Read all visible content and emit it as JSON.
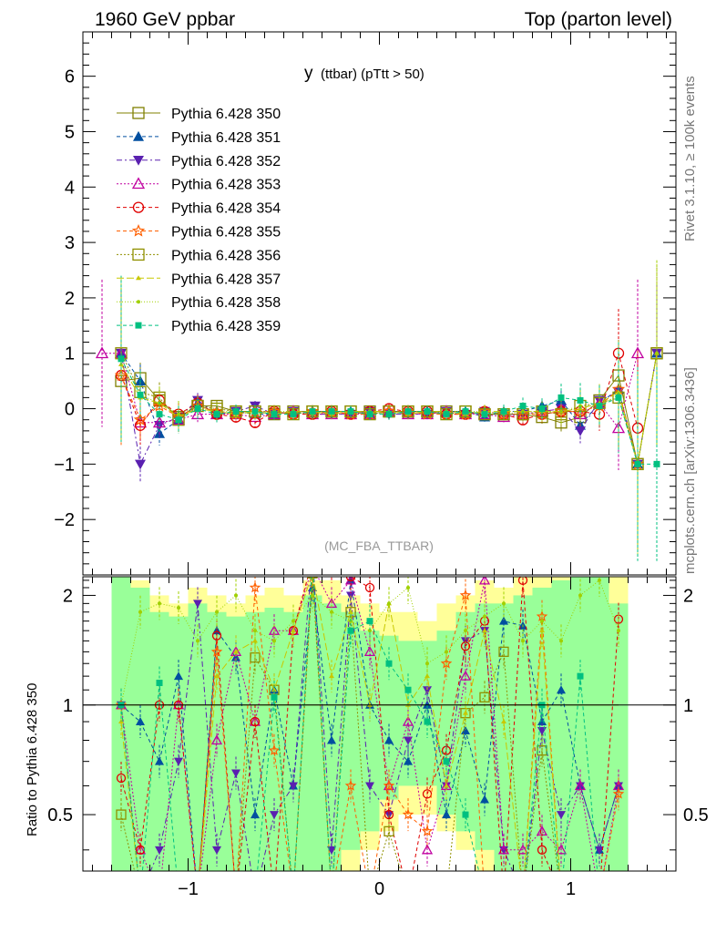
{
  "header": {
    "left": "1960 GeV ppbar",
    "right": "Top (parton level)"
  },
  "side": {
    "rivet": "Rivet 3.1.10, ≥ 100k events",
    "mcplots": "mcplots.cern.ch [arXiv:1306.3436]"
  },
  "plot_title": {
    "main": "y",
    "sub": "(ttbar)  (pTtt > 50)"
  },
  "analysis": "(MC_FBA_TTBAR)",
  "ratio_ylabel": "Ratio to Pythia 6.428 350",
  "legend": [
    "Pythia 6.428 350",
    "Pythia 6.428 351",
    "Pythia 6.428 352",
    "Pythia 6.428 353",
    "Pythia 6.428 354",
    "Pythia 6.428 355",
    "Pythia 6.428 356",
    "Pythia 6.428 357",
    "Pythia 6.428 358",
    "Pythia 6.428 359"
  ],
  "chart_data": [
    {
      "type": "line",
      "title": "y (ttbar) (pTtt > 50)",
      "xlabel": "",
      "ylabel": "",
      "xlim": [
        -1.55,
        1.55
      ],
      "ylim": [
        -3,
        6.8
      ],
      "x": [
        -1.45,
        -1.35,
        -1.25,
        -1.15,
        -1.05,
        -0.95,
        -0.85,
        -0.75,
        -0.65,
        -0.55,
        -0.45,
        -0.35,
        -0.25,
        -0.15,
        -0.05,
        0.05,
        0.15,
        0.25,
        0.35,
        0.45,
        0.55,
        0.65,
        0.75,
        0.85,
        0.95,
        1.05,
        1.15,
        1.25,
        1.35,
        1.45
      ],
      "x_tick_labels": [
        "−1",
        "0",
        "1"
      ],
      "y_tick_labels": [
        "−2",
        "−1",
        "0",
        "1",
        "2",
        "3",
        "4",
        "5",
        "6"
      ],
      "series": [
        {
          "name": "Pythia 6.428 350",
          "color": "#808000",
          "marker": "square-open",
          "dash": "solid",
          "values": [
            null,
            0.5,
            0.55,
            0.15,
            -0.15,
            0.05,
            0.05,
            -0.05,
            -0.05,
            -0.1,
            -0.05,
            -0.05,
            -0.05,
            -0.05,
            -0.05,
            -0.05,
            -0.05,
            -0.05,
            -0.05,
            -0.05,
            -0.1,
            -0.1,
            -0.1,
            -0.15,
            -0.25,
            -0.15,
            0.15,
            0.6,
            -1.0,
            1.0
          ]
        },
        {
          "name": "Pythia 6.428 351",
          "color": "#004fa0",
          "marker": "triangle-up",
          "dash": "4,3",
          "values": [
            null,
            1.0,
            0.5,
            -0.45,
            -0.2,
            0.1,
            -0.1,
            -0.05,
            -0.1,
            -0.1,
            -0.05,
            -0.05,
            -0.05,
            -0.05,
            -0.1,
            -0.05,
            -0.05,
            -0.05,
            -0.05,
            -0.05,
            -0.15,
            -0.05,
            -0.05,
            0.05,
            0.15,
            -0.3,
            0.1,
            0.35,
            -1.0,
            1.0
          ]
        },
        {
          "name": "Pythia 6.428 352",
          "color": "#5a20b0",
          "marker": "triangle-down",
          "dash": "6,3,2,3",
          "values": [
            null,
            1.0,
            -1.0,
            -0.3,
            -0.15,
            0.15,
            -0.1,
            -0.05,
            0.05,
            -0.1,
            -0.05,
            -0.1,
            -0.1,
            -0.1,
            -0.05,
            -0.1,
            -0.1,
            -0.1,
            -0.05,
            -0.1,
            -0.05,
            -0.1,
            -0.1,
            -0.05,
            0.0,
            -0.4,
            0.15,
            0.3,
            -1.0,
            1.0
          ]
        },
        {
          "name": "Pythia 6.428 353",
          "color": "#c000a0",
          "marker": "triangle-up-open",
          "dash": "2,2",
          "values": [
            1.0,
            1.0,
            -0.25,
            -0.25,
            -0.2,
            -0.1,
            -0.1,
            -0.1,
            -0.15,
            -0.1,
            -0.05,
            -0.1,
            -0.1,
            -0.1,
            -0.1,
            -0.05,
            -0.1,
            -0.1,
            -0.05,
            -0.1,
            -0.1,
            -0.15,
            -0.1,
            -0.05,
            0.0,
            -0.1,
            0.1,
            -0.35,
            1.0,
            null
          ]
        },
        {
          "name": "Pythia 6.428 354",
          "color": "#e00000",
          "marker": "circle-open",
          "dash": "4,3",
          "values": [
            null,
            0.6,
            -0.3,
            0.15,
            -0.1,
            0.1,
            -0.1,
            -0.15,
            -0.25,
            -0.05,
            -0.1,
            -0.1,
            -0.05,
            -0.1,
            -0.05,
            0.0,
            -0.05,
            -0.05,
            -0.1,
            -0.1,
            -0.05,
            -0.1,
            -0.2,
            -0.1,
            -0.05,
            -0.05,
            -0.1,
            1.0,
            -0.35,
            null
          ]
        },
        {
          "name": "Pythia 6.428 355",
          "color": "#ff6000",
          "marker": "star-open",
          "dash": "4,3",
          "values": [
            null,
            0.6,
            -0.2,
            0.05,
            -0.15,
            0.05,
            -0.05,
            -0.1,
            -0.05,
            -0.05,
            -0.1,
            -0.05,
            -0.05,
            -0.1,
            -0.1,
            -0.05,
            -0.05,
            -0.1,
            -0.1,
            -0.1,
            -0.05,
            -0.1,
            -0.1,
            -0.1,
            -0.05,
            -0.05,
            0.05,
            0.35,
            -1.0,
            null
          ]
        },
        {
          "name": "Pythia 6.428 356",
          "color": "#909000",
          "marker": "square-open",
          "dash": "2,2",
          "values": [
            null,
            1.0,
            0.3,
            0.2,
            -0.2,
            0.05,
            0.0,
            -0.05,
            -0.05,
            -0.05,
            -0.1,
            -0.05,
            -0.05,
            -0.05,
            -0.1,
            -0.05,
            -0.05,
            -0.05,
            -0.1,
            -0.05,
            -0.1,
            -0.1,
            -0.1,
            -0.05,
            -0.1,
            0.05,
            0.1,
            0.2,
            -1.0,
            1.0
          ]
        },
        {
          "name": "Pythia 6.428 357",
          "color": "#c8c800",
          "marker": "tri-small",
          "dash": "8,3",
          "values": [
            null,
            0.8,
            0.2,
            0.1,
            -0.15,
            0.0,
            -0.05,
            -0.1,
            -0.05,
            -0.1,
            -0.05,
            -0.05,
            -0.1,
            -0.05,
            -0.05,
            -0.05,
            -0.1,
            -0.05,
            -0.05,
            -0.1,
            -0.05,
            -0.05,
            -0.05,
            -0.05,
            -0.05,
            0.0,
            0.1,
            0.3,
            -1.0,
            1.0
          ]
        },
        {
          "name": "Pythia 6.428 358",
          "color": "#a0d000",
          "marker": "dot-small",
          "dash": "1,2",
          "values": [
            null,
            0.9,
            0.25,
            0.1,
            -0.1,
            0.05,
            -0.05,
            -0.05,
            -0.1,
            -0.05,
            -0.05,
            -0.1,
            -0.05,
            -0.05,
            -0.05,
            -0.1,
            -0.05,
            -0.05,
            -0.05,
            -0.05,
            -0.05,
            -0.1,
            -0.05,
            -0.05,
            -0.05,
            0.05,
            0.05,
            0.25,
            -1.0,
            1.0
          ]
        },
        {
          "name": "Pythia 6.428 359",
          "color": "#00c080",
          "marker": "square",
          "dash": "4,3",
          "values": [
            null,
            0.9,
            0.25,
            -0.1,
            -0.2,
            0.0,
            -0.1,
            -0.05,
            -0.05,
            -0.1,
            -0.1,
            -0.05,
            -0.05,
            -0.05,
            -0.1,
            -0.1,
            -0.05,
            -0.05,
            -0.1,
            -0.05,
            -0.1,
            -0.05,
            0.05,
            0.0,
            0.2,
            0.15,
            0.05,
            0.2,
            -1.0,
            -1.0
          ]
        }
      ]
    },
    {
      "type": "line",
      "title": "",
      "xlabel": "",
      "ylabel": "Ratio to Pythia 6.428 350",
      "xlim": [
        -1.55,
        1.55
      ],
      "ylim": [
        0.35,
        2.25
      ],
      "x_tick_labels": [
        "−1",
        "0",
        "1"
      ],
      "y_tick_labels": [
        "0.5",
        "1",
        "2"
      ],
      "reference_line": 1,
      "band_x": [
        -1.35,
        -1.25,
        -1.15,
        -1.05,
        -0.95,
        -0.85,
        -0.75,
        -0.65,
        -0.55,
        -0.45,
        -0.35,
        -0.25,
        -0.15,
        -0.05,
        0.05,
        0.15,
        0.25,
        0.35,
        0.45,
        0.55,
        0.65,
        0.75,
        0.85,
        0.95,
        1.05,
        1.15,
        1.25
      ],
      "band_yellow_hi": [
        2.3,
        2.2,
        2.0,
        1.9,
        2.1,
        2.0,
        1.9,
        2.0,
        2.1,
        2.0,
        2.2,
        2.2,
        2.0,
        1.9,
        1.8,
        1.8,
        1.7,
        1.9,
        2.0,
        2.2,
        2.1,
        2.3,
        2.3,
        2.3,
        2.3,
        2.3,
        2.3
      ],
      "band_yellow_lo": [
        0.35,
        0.35,
        0.35,
        0.35,
        0.35,
        0.35,
        0.35,
        0.35,
        0.35,
        0.35,
        0.35,
        0.35,
        0.35,
        0.4,
        0.45,
        0.5,
        0.5,
        0.45,
        0.4,
        0.35,
        0.35,
        0.35,
        0.35,
        0.35,
        0.35,
        0.35,
        0.35
      ],
      "band_green_hi": [
        2.3,
        2.1,
        1.8,
        1.75,
        1.9,
        1.8,
        1.75,
        1.8,
        1.85,
        1.8,
        2.0,
        1.9,
        1.8,
        1.6,
        1.55,
        1.5,
        1.5,
        1.6,
        1.8,
        1.9,
        1.9,
        2.0,
        2.1,
        2.2,
        2.3,
        2.3,
        1.9
      ],
      "band_green_lo": [
        0.35,
        0.35,
        0.35,
        0.35,
        0.35,
        0.35,
        0.35,
        0.35,
        0.35,
        0.35,
        0.35,
        0.35,
        0.4,
        0.45,
        0.55,
        0.6,
        0.6,
        0.5,
        0.45,
        0.4,
        0.35,
        0.35,
        0.35,
        0.35,
        0.35,
        0.35,
        0.35
      ],
      "series": [
        {
          "name": "Pythia 6.428 350",
          "values": [
            1.0,
            1.0,
            1.0,
            1.0,
            1.0,
            1.0,
            1.0,
            1.0,
            1.0,
            1.0,
            1.0,
            1.0,
            1.0,
            1.0,
            1.0,
            1.0,
            1.0,
            1.0,
            1.0,
            1.0,
            1.0,
            1.0,
            1.0,
            1.0,
            1.0,
            1.0,
            1.0
          ]
        },
        {
          "name": "Pythia 6.428 351",
          "values": [
            1.0,
            0.9,
            0.7,
            1.2,
            0.3,
            1.6,
            1.35,
            0.5,
            1.1,
            0.6,
            2.1,
            0.8,
            2.2,
            1.0,
            0.8,
            0.7,
            1.0,
            0.5,
            0.85,
            0.55,
            1.7,
            1.65,
            0.9,
            1.1,
            0.6,
            0.4,
            0.6
          ]
        },
        {
          "name": "Pythia 6.428 352",
          "values": [
            1.0,
            0.3,
            0.4,
            0.7,
            1.9,
            0.4,
            0.65,
            0.3,
            0.5,
            0.6,
            2.6,
            0.4,
            2.0,
            0.6,
            0.5,
            0.8,
            1.1,
            0.6,
            1.5,
            1.6,
            0.4,
            0.3,
            0.85,
            0.5,
            0.6,
            0.4,
            0.6
          ]
        },
        {
          "name": "Pythia 6.428 353",
          "values": [
            1.0,
            0.4,
            0.3,
            1.0,
            0.3,
            0.8,
            1.4,
            0.9,
            1.6,
            1.6,
            2.4,
            1.9,
            2.2,
            1.4,
            0.6,
            0.9,
            0.4,
            0.6,
            1.2,
            2.2,
            0.4,
            0.4,
            0.45,
            0.4,
            0.6,
            0.3,
            0.6
          ]
        },
        {
          "name": "Pythia 6.428 354",
          "values": [
            0.63,
            0.4,
            1.0,
            1.0,
            0.3,
            1.55,
            0.3,
            0.9,
            0.3,
            1.6,
            2.5,
            2.4,
            2.25,
            2.1,
            0.5,
            0.3,
            0.57,
            0.75,
            1.45,
            1.7,
            0.3,
            2.2,
            0.4,
            0.3,
            0.3,
            0.3,
            1.72
          ]
        },
        {
          "name": "Pythia 6.428 355",
          "values": [
            1.0,
            0.3,
            0.3,
            0.3,
            0.3,
            1.4,
            0.3,
            2.1,
            0.75,
            0.3,
            2.4,
            0.3,
            0.6,
            0.3,
            0.6,
            0.5,
            0.45,
            1.3,
            2.0,
            0.3,
            0.3,
            0.3,
            1.75,
            0.3,
            0.3,
            0.3,
            0.57
          ]
        },
        {
          "name": "Pythia 6.428 356",
          "values": [
            0.5,
            0.3,
            0.3,
            0.3,
            0.3,
            0.3,
            0.3,
            1.35,
            1.1,
            0.3,
            2.3,
            0.3,
            1.8,
            0.3,
            0.45,
            0.3,
            0.3,
            0.3,
            0.95,
            1.05,
            1.4,
            0.3,
            0.75,
            0.3,
            0.3,
            0.3,
            0.3
          ]
        },
        {
          "name": "Pythia 6.428 357",
          "values": [
            0.9,
            0.3,
            0.3,
            0.3,
            0.3,
            1.2,
            1.4,
            1.5,
            1.1,
            1.6,
            2.3,
            1.2,
            1.8,
            1.0,
            1.9,
            1.0,
            1.2,
            0.6,
            0.95,
            1.6,
            0.9,
            0.3,
            1.6,
            0.3,
            0.3,
            0.3,
            0.3
          ]
        },
        {
          "name": "Pythia 6.428 358",
          "values": [
            1.0,
            1.8,
            1.9,
            1.85,
            1.5,
            1.8,
            2.0,
            1.6,
            1.5,
            1.7,
            2.0,
            1.8,
            1.7,
            1.6,
            1.9,
            2.1,
            1.3,
            1.4,
            1.6,
            1.75,
            1.9,
            1.5,
            1.7,
            1.5,
            2.0,
            2.2,
            1.6
          ]
        },
        {
          "name": "Pythia 6.428 359",
          "values": [
            1.0,
            0.3,
            1.15,
            0.3,
            0.3,
            0.3,
            0.3,
            0.3,
            1.05,
            0.3,
            2.5,
            0.3,
            1.6,
            1.7,
            1.3,
            1.1,
            0.9,
            0.7,
            0.5,
            0.3,
            0.3,
            0.3,
            1.0,
            0.3,
            1.2,
            0.3,
            0.3
          ]
        }
      ]
    }
  ]
}
